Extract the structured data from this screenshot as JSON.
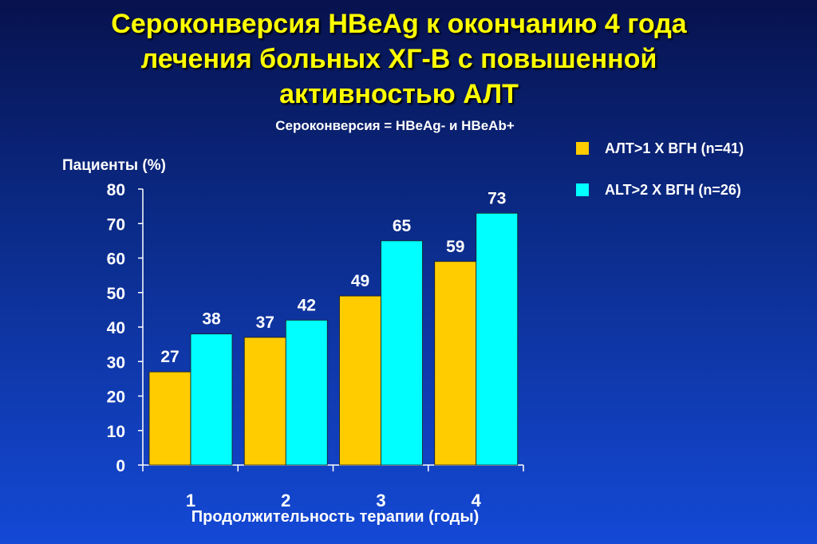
{
  "slide": {
    "title_lines": [
      "Сероконверсия HBeAg к окончанию 4 года",
      "лечения больных ХГ-В с повышенной",
      "активностью АЛТ"
    ],
    "subtitle": "Сероконверсия = HBeAg- и HBeAb+"
  },
  "chart_data": {
    "type": "bar",
    "ylabel": "Пациенты (%)",
    "xlabel": "Продолжительность терапии (годы)",
    "categories": [
      "1",
      "2",
      "3",
      "4"
    ],
    "ylim": [
      0,
      80
    ],
    "yticks": [
      0,
      10,
      20,
      30,
      40,
      50,
      60,
      70,
      80
    ],
    "legend_position": "top-right",
    "series": [
      {
        "name": "АЛТ>1 Х ВГН (n=41)",
        "values": [
          27,
          37,
          49,
          59
        ],
        "color": "#ffcc00"
      },
      {
        "name": "ALT>2 X ВГН (n=26)",
        "values": [
          38,
          42,
          65,
          73
        ],
        "color": "#00ffff"
      }
    ]
  }
}
